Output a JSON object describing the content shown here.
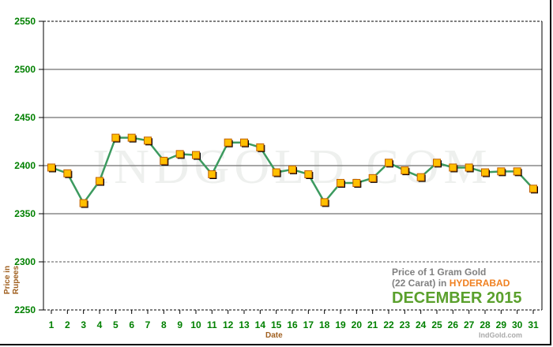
{
  "chart_data": {
    "type": "line",
    "title_line1": "Price of 1 Gram Gold",
    "title_line2_prefix": "(22 Carat) in",
    "city": "HYDERABAD",
    "period": "DECEMBER 2015",
    "xlabel": "Date",
    "ylabel": "Price in Rupees",
    "credit": "IndGold.com",
    "watermark": "INDGOLD.COM",
    "ylim": [
      2250,
      2550
    ],
    "yticks": [
      2250,
      2300,
      2350,
      2400,
      2450,
      2500,
      2550
    ],
    "x": [
      1,
      2,
      3,
      4,
      5,
      6,
      7,
      8,
      9,
      10,
      11,
      12,
      13,
      14,
      15,
      16,
      17,
      18,
      19,
      20,
      21,
      22,
      23,
      24,
      25,
      26,
      27,
      28,
      29,
      30,
      31
    ],
    "values": [
      2398,
      2392,
      2361,
      2384,
      2429,
      2429,
      2426,
      2405,
      2412,
      2411,
      2391,
      2424,
      2424,
      2419,
      2393,
      2396,
      2391,
      2362,
      2382,
      2382,
      2387,
      2403,
      2395,
      2388,
      2403,
      2398,
      2398,
      2393,
      2394,
      2394,
      2376
    ],
    "grid": true,
    "colors": {
      "line": "#3c9a5f",
      "marker": "#ffc000",
      "marker_border": "#c06000",
      "tick": "#008000",
      "label": "#a06020"
    }
  }
}
